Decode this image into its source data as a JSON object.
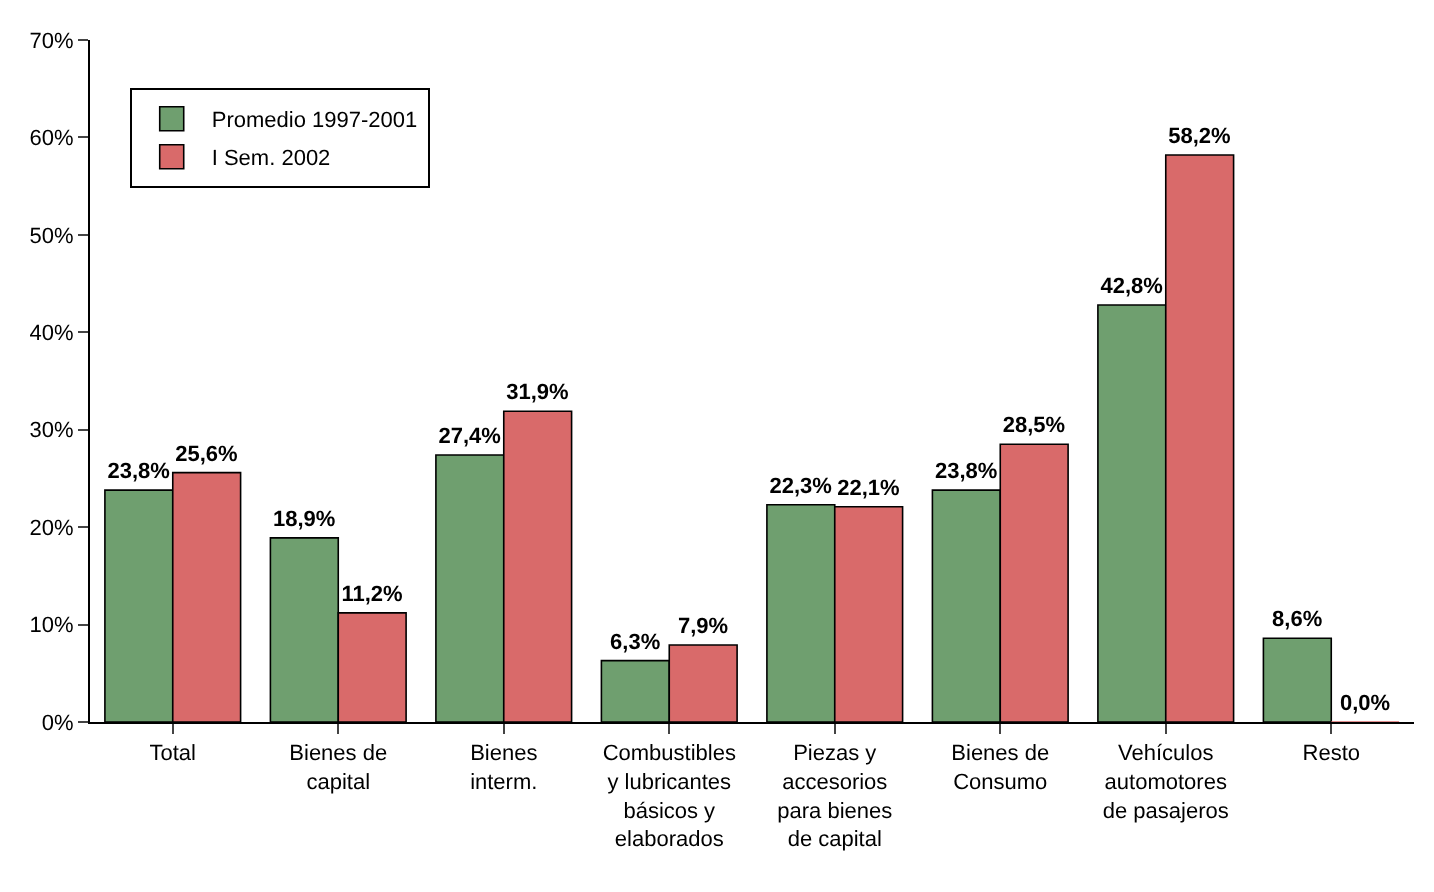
{
  "chart_data": {
    "type": "bar",
    "categories": [
      "Total",
      "Bienes de\ncapital",
      "Bienes\ninterm.",
      "Combustibles\ny lubricantes\nbásicos y\nelaborados",
      "Piezas y\naccesorios\npara bienes\nde capital",
      "Bienes de\nConsumo",
      "Vehículos\nautomotores\nde pasajeros",
      "Resto"
    ],
    "series": [
      {
        "name": "Promedio 1997-2001",
        "color": "#6f9f6f",
        "values": [
          23.8,
          18.9,
          27.4,
          6.3,
          22.3,
          23.8,
          42.8,
          8.6
        ],
        "value_labels": [
          "23,8%",
          "18,9%",
          "27,4%",
          "6,3%",
          "22,3%",
          "23,8%",
          "42,8%",
          "8,6%"
        ]
      },
      {
        "name": "I Sem. 2002",
        "color": "#d96a6a",
        "values": [
          25.6,
          11.2,
          31.9,
          7.9,
          22.1,
          28.5,
          58.2,
          0.0
        ],
        "value_labels": [
          "25,6%",
          "11,2%",
          "31,9%",
          "7,9%",
          "22,1%",
          "28,5%",
          "58,2%",
          "0,0%"
        ]
      }
    ],
    "ylim": [
      0,
      70
    ],
    "yticks": [
      {
        "value": 0,
        "label": "0%"
      },
      {
        "value": 10,
        "label": "10%"
      },
      {
        "value": 20,
        "label": "20%"
      },
      {
        "value": 30,
        "label": "30%"
      },
      {
        "value": 40,
        "label": "40%"
      },
      {
        "value": 50,
        "label": "50%"
      },
      {
        "value": 60,
        "label": "60%"
      },
      {
        "value": 70,
        "label": "70%"
      }
    ],
    "grid": false,
    "legend": "top left"
  }
}
